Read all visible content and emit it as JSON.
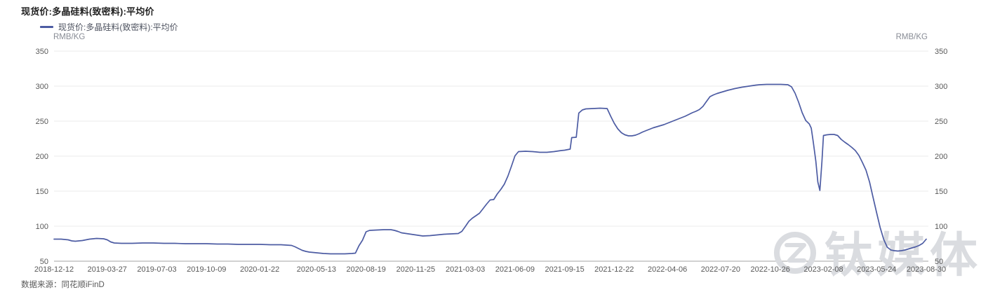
{
  "chart": {
    "title": "现货价:多晶硅料(致密料):平均价",
    "legend": "现货价:多晶硅料(致密料):平均价",
    "unit_left": "RMB/KG",
    "unit_right": "RMB/KG",
    "source": "数据来源：同花顺iFinD",
    "watermark": "钛媒体",
    "line_color": "#4d5ca3",
    "grid_color": "#ebebeb",
    "axis_line_color": "#a3a3a3",
    "tick_text_color": "#595959"
  },
  "chart_data": {
    "type": "line",
    "title": "现货价:多晶硅料(致密料):平均价",
    "xlabel": "",
    "ylabel": "RMB/KG",
    "ylim": [
      50,
      350
    ],
    "y_ticks": [
      50,
      100,
      150,
      200,
      250,
      300,
      350
    ],
    "x_tick_labels": [
      "2018-12-12",
      "2019-03-27",
      "2019-07-03",
      "2019-10-09",
      "2020-01-22",
      "2020-05-13",
      "2020-08-19",
      "2020-11-25",
      "2021-03-03",
      "2021-06-09",
      "2021-09-15",
      "2021-12-22",
      "2022-04-06",
      "2022-07-20",
      "2022-10-26",
      "2023-02-08",
      "2023-05-24",
      "2023-08-30"
    ],
    "grid": true,
    "legend_position": "top-left",
    "dual_y_axis": true,
    "series": [
      {
        "name": "现货价:多晶硅料(致密料):平均价",
        "color": "#4d5ca3",
        "points": [
          [
            "2018-12-12",
            81.5
          ],
          [
            "2018-12-26",
            81.5
          ],
          [
            "2019-01-09",
            80.5
          ],
          [
            "2019-01-16",
            79
          ],
          [
            "2019-01-23",
            78.5
          ],
          [
            "2019-02-06",
            79.5
          ],
          [
            "2019-02-20",
            81.5
          ],
          [
            "2019-03-06",
            82.5
          ],
          [
            "2019-03-20",
            82
          ],
          [
            "2019-03-27",
            80.5
          ],
          [
            "2019-04-03",
            77.5
          ],
          [
            "2019-04-10",
            76
          ],
          [
            "2019-04-24",
            75.5
          ],
          [
            "2019-05-15",
            75.5
          ],
          [
            "2019-06-05",
            76
          ],
          [
            "2019-06-26",
            76
          ],
          [
            "2019-07-17",
            75.5
          ],
          [
            "2019-08-07",
            75.5
          ],
          [
            "2019-08-28",
            75
          ],
          [
            "2019-09-18",
            75
          ],
          [
            "2019-10-09",
            75
          ],
          [
            "2019-10-30",
            74.5
          ],
          [
            "2019-11-20",
            74.5
          ],
          [
            "2019-12-11",
            74
          ],
          [
            "2020-01-01",
            74
          ],
          [
            "2020-01-22",
            74
          ],
          [
            "2020-02-12",
            73.5
          ],
          [
            "2020-03-04",
            73.5
          ],
          [
            "2020-03-25",
            72.5
          ],
          [
            "2020-04-01",
            70.5
          ],
          [
            "2020-04-08",
            68
          ],
          [
            "2020-04-15",
            65.5
          ],
          [
            "2020-04-22",
            64
          ],
          [
            "2020-04-29",
            63
          ],
          [
            "2020-05-06",
            62.5
          ],
          [
            "2020-05-13",
            62
          ],
          [
            "2020-05-20",
            61.5
          ],
          [
            "2020-05-27",
            61
          ],
          [
            "2020-06-10",
            60.5
          ],
          [
            "2020-06-24",
            60.5
          ],
          [
            "2020-07-08",
            60.5
          ],
          [
            "2020-07-22",
            61
          ],
          [
            "2020-07-29",
            61.5
          ],
          [
            "2020-08-05",
            72
          ],
          [
            "2020-08-12",
            80
          ],
          [
            "2020-08-19",
            92
          ],
          [
            "2020-08-26",
            94
          ],
          [
            "2020-09-09",
            94.5
          ],
          [
            "2020-09-23",
            95
          ],
          [
            "2020-10-07",
            95
          ],
          [
            "2020-10-14",
            94
          ],
          [
            "2020-10-21",
            92.5
          ],
          [
            "2020-10-28",
            90.5
          ],
          [
            "2020-11-11",
            89
          ],
          [
            "2020-11-25",
            87.5
          ],
          [
            "2020-12-09",
            86
          ],
          [
            "2020-12-23",
            86.5
          ],
          [
            "2021-01-06",
            87.5
          ],
          [
            "2021-01-20",
            88.5
          ],
          [
            "2021-02-03",
            89
          ],
          [
            "2021-02-17",
            89.5
          ],
          [
            "2021-02-24",
            92.5
          ],
          [
            "2021-03-03",
            99.5
          ],
          [
            "2021-03-10",
            107
          ],
          [
            "2021-03-17",
            111.5
          ],
          [
            "2021-03-24",
            115
          ],
          [
            "2021-03-31",
            118.5
          ],
          [
            "2021-04-07",
            125
          ],
          [
            "2021-04-14",
            131.5
          ],
          [
            "2021-04-21",
            137.5
          ],
          [
            "2021-04-28",
            138
          ],
          [
            "2021-05-05",
            146
          ],
          [
            "2021-05-12",
            152.5
          ],
          [
            "2021-05-19",
            160
          ],
          [
            "2021-05-26",
            171.5
          ],
          [
            "2021-06-02",
            185.5
          ],
          [
            "2021-06-09",
            200.5
          ],
          [
            "2021-06-16",
            206.5
          ],
          [
            "2021-06-30",
            207
          ],
          [
            "2021-07-14",
            206.5
          ],
          [
            "2021-07-28",
            205.5
          ],
          [
            "2021-08-11",
            205.5
          ],
          [
            "2021-08-25",
            206.5
          ],
          [
            "2021-09-08",
            208
          ],
          [
            "2021-09-15",
            208.5
          ],
          [
            "2021-09-22",
            209.5
          ],
          [
            "2021-09-26",
            210
          ],
          [
            "2021-09-29",
            226.5
          ],
          [
            "2021-10-08",
            227
          ],
          [
            "2021-10-13",
            261.5
          ],
          [
            "2021-10-20",
            266
          ],
          [
            "2021-10-27",
            267.5
          ],
          [
            "2021-11-10",
            268
          ],
          [
            "2021-11-24",
            268.5
          ],
          [
            "2021-12-08",
            268
          ],
          [
            "2021-12-15",
            257
          ],
          [
            "2021-12-22",
            247
          ],
          [
            "2021-12-29",
            239
          ],
          [
            "2022-01-05",
            233.5
          ],
          [
            "2022-01-12",
            230.5
          ],
          [
            "2022-01-19",
            229
          ],
          [
            "2022-01-26",
            229
          ],
          [
            "2022-02-02",
            230
          ],
          [
            "2022-02-09",
            232
          ],
          [
            "2022-02-16",
            234.5
          ],
          [
            "2022-02-23",
            236.5
          ],
          [
            "2022-03-02",
            238.5
          ],
          [
            "2022-03-09",
            240.5
          ],
          [
            "2022-03-16",
            242
          ],
          [
            "2022-03-23",
            243.5
          ],
          [
            "2022-03-30",
            245
          ],
          [
            "2022-04-06",
            247
          ],
          [
            "2022-04-13",
            249
          ],
          [
            "2022-04-20",
            251
          ],
          [
            "2022-04-27",
            253
          ],
          [
            "2022-05-11",
            257
          ],
          [
            "2022-05-18",
            259.5
          ],
          [
            "2022-05-25",
            262
          ],
          [
            "2022-06-01",
            264
          ],
          [
            "2022-06-08",
            266.5
          ],
          [
            "2022-06-15",
            271
          ],
          [
            "2022-06-22",
            278
          ],
          [
            "2022-06-29",
            285
          ],
          [
            "2022-07-06",
            287.5
          ],
          [
            "2022-07-13",
            289.5
          ],
          [
            "2022-07-20",
            291
          ],
          [
            "2022-08-03",
            294
          ],
          [
            "2022-08-17",
            296.5
          ],
          [
            "2022-08-31",
            298.5
          ],
          [
            "2022-09-14",
            300
          ],
          [
            "2022-09-28",
            301.5
          ],
          [
            "2022-10-05",
            302
          ],
          [
            "2022-10-19",
            302.5
          ],
          [
            "2022-11-02",
            302.5
          ],
          [
            "2022-11-16",
            302.5
          ],
          [
            "2022-11-30",
            302
          ],
          [
            "2022-12-07",
            299
          ],
          [
            "2022-12-14",
            290
          ],
          [
            "2022-12-21",
            277
          ],
          [
            "2022-12-28",
            262
          ],
          [
            "2023-01-04",
            251
          ],
          [
            "2023-01-11",
            246
          ],
          [
            "2023-01-15",
            240
          ],
          [
            "2023-01-19",
            220
          ],
          [
            "2023-01-24",
            193
          ],
          [
            "2023-01-28",
            163
          ],
          [
            "2023-02-01",
            151
          ],
          [
            "2023-02-05",
            192
          ],
          [
            "2023-02-08",
            229.5
          ],
          [
            "2023-02-15",
            230.5
          ],
          [
            "2023-02-22",
            231
          ],
          [
            "2023-03-01",
            231
          ],
          [
            "2023-03-08",
            229.5
          ],
          [
            "2023-03-15",
            224
          ],
          [
            "2023-03-22",
            220
          ],
          [
            "2023-03-29",
            216.5
          ],
          [
            "2023-04-05",
            212.5
          ],
          [
            "2023-04-12",
            208
          ],
          [
            "2023-04-19",
            201
          ],
          [
            "2023-04-26",
            191
          ],
          [
            "2023-05-03",
            180
          ],
          [
            "2023-05-10",
            163
          ],
          [
            "2023-05-17",
            141
          ],
          [
            "2023-05-24",
            119
          ],
          [
            "2023-05-31",
            98
          ],
          [
            "2023-06-07",
            81
          ],
          [
            "2023-06-14",
            70
          ],
          [
            "2023-06-21",
            66
          ],
          [
            "2023-06-28",
            65
          ],
          [
            "2023-07-05",
            64.5
          ],
          [
            "2023-07-12",
            65
          ],
          [
            "2023-07-19",
            66
          ],
          [
            "2023-07-26",
            67.5
          ],
          [
            "2023-08-02",
            69
          ],
          [
            "2023-08-09",
            70.5
          ],
          [
            "2023-08-16",
            72.5
          ],
          [
            "2023-08-23",
            75.5
          ],
          [
            "2023-08-30",
            81.5
          ]
        ]
      }
    ]
  }
}
